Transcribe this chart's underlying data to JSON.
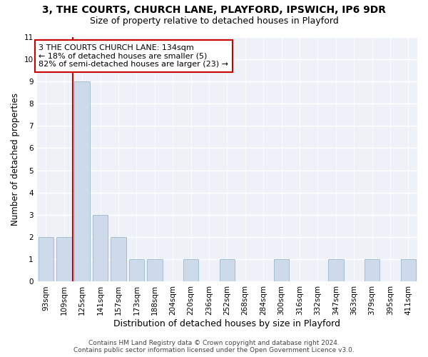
{
  "title1": "3, THE COURTS, CHURCH LANE, PLAYFORD, IPSWICH, IP6 9DR",
  "title2": "Size of property relative to detached houses in Playford",
  "xlabel": "Distribution of detached houses by size in Playford",
  "ylabel": "Number of detached properties",
  "categories": [
    "93sqm",
    "109sqm",
    "125sqm",
    "141sqm",
    "157sqm",
    "173sqm",
    "188sqm",
    "204sqm",
    "220sqm",
    "236sqm",
    "252sqm",
    "268sqm",
    "284sqm",
    "300sqm",
    "316sqm",
    "332sqm",
    "347sqm",
    "363sqm",
    "379sqm",
    "395sqm",
    "411sqm"
  ],
  "values": [
    2,
    2,
    9,
    3,
    2,
    1,
    1,
    0,
    1,
    0,
    1,
    0,
    0,
    1,
    0,
    0,
    1,
    0,
    1,
    0,
    1
  ],
  "bar_color": "#ccdaea",
  "bar_edge_color": "#9ab8cc",
  "vline_x": 1.5,
  "annotation_line1": "3 THE COURTS CHURCH LANE: 134sqm",
  "annotation_line2": "← 18% of detached houses are smaller (5)",
  "annotation_line3": "82% of semi-detached houses are larger (23) →",
  "annotation_box_color": "#ffffff",
  "annotation_box_edge": "#cc0000",
  "vline_color": "#cc0000",
  "footer1": "Contains HM Land Registry data © Crown copyright and database right 2024.",
  "footer2": "Contains public sector information licensed under the Open Government Licence v3.0.",
  "ylim_max": 11,
  "bg_color": "#eef2f8",
  "title1_fontsize": 10,
  "title2_fontsize": 9,
  "tick_fontsize": 7.5,
  "ylabel_fontsize": 8.5,
  "xlabel_fontsize": 9,
  "annotation_fontsize": 8,
  "footer_fontsize": 6.5
}
